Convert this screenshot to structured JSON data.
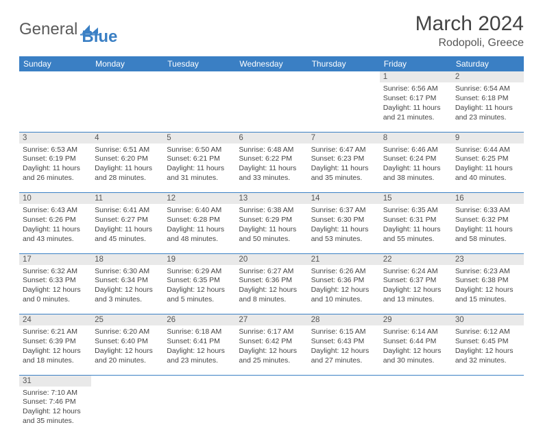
{
  "brand": {
    "general": "General",
    "blue": "Blue"
  },
  "title": "March 2024",
  "location": "Rodopoli, Greece",
  "colors": {
    "accent": "#3a7fc4",
    "daynum_bg": "#e9e9e9",
    "text": "#444444"
  },
  "weekdays": [
    "Sunday",
    "Monday",
    "Tuesday",
    "Wednesday",
    "Thursday",
    "Friday",
    "Saturday"
  ],
  "rows": [
    {
      "nums": [
        "",
        "",
        "",
        "",
        "",
        "1",
        "2"
      ],
      "cells": [
        null,
        null,
        null,
        null,
        null,
        {
          "sunrise": "Sunrise: 6:56 AM",
          "sunset": "Sunset: 6:17 PM",
          "day1": "Daylight: 11 hours",
          "day2": "and 21 minutes."
        },
        {
          "sunrise": "Sunrise: 6:54 AM",
          "sunset": "Sunset: 6:18 PM",
          "day1": "Daylight: 11 hours",
          "day2": "and 23 minutes."
        }
      ]
    },
    {
      "nums": [
        "3",
        "4",
        "5",
        "6",
        "7",
        "8",
        "9"
      ],
      "cells": [
        {
          "sunrise": "Sunrise: 6:53 AM",
          "sunset": "Sunset: 6:19 PM",
          "day1": "Daylight: 11 hours",
          "day2": "and 26 minutes."
        },
        {
          "sunrise": "Sunrise: 6:51 AM",
          "sunset": "Sunset: 6:20 PM",
          "day1": "Daylight: 11 hours",
          "day2": "and 28 minutes."
        },
        {
          "sunrise": "Sunrise: 6:50 AM",
          "sunset": "Sunset: 6:21 PM",
          "day1": "Daylight: 11 hours",
          "day2": "and 31 minutes."
        },
        {
          "sunrise": "Sunrise: 6:48 AM",
          "sunset": "Sunset: 6:22 PM",
          "day1": "Daylight: 11 hours",
          "day2": "and 33 minutes."
        },
        {
          "sunrise": "Sunrise: 6:47 AM",
          "sunset": "Sunset: 6:23 PM",
          "day1": "Daylight: 11 hours",
          "day2": "and 35 minutes."
        },
        {
          "sunrise": "Sunrise: 6:46 AM",
          "sunset": "Sunset: 6:24 PM",
          "day1": "Daylight: 11 hours",
          "day2": "and 38 minutes."
        },
        {
          "sunrise": "Sunrise: 6:44 AM",
          "sunset": "Sunset: 6:25 PM",
          "day1": "Daylight: 11 hours",
          "day2": "and 40 minutes."
        }
      ]
    },
    {
      "nums": [
        "10",
        "11",
        "12",
        "13",
        "14",
        "15",
        "16"
      ],
      "cells": [
        {
          "sunrise": "Sunrise: 6:43 AM",
          "sunset": "Sunset: 6:26 PM",
          "day1": "Daylight: 11 hours",
          "day2": "and 43 minutes."
        },
        {
          "sunrise": "Sunrise: 6:41 AM",
          "sunset": "Sunset: 6:27 PM",
          "day1": "Daylight: 11 hours",
          "day2": "and 45 minutes."
        },
        {
          "sunrise": "Sunrise: 6:40 AM",
          "sunset": "Sunset: 6:28 PM",
          "day1": "Daylight: 11 hours",
          "day2": "and 48 minutes."
        },
        {
          "sunrise": "Sunrise: 6:38 AM",
          "sunset": "Sunset: 6:29 PM",
          "day1": "Daylight: 11 hours",
          "day2": "and 50 minutes."
        },
        {
          "sunrise": "Sunrise: 6:37 AM",
          "sunset": "Sunset: 6:30 PM",
          "day1": "Daylight: 11 hours",
          "day2": "and 53 minutes."
        },
        {
          "sunrise": "Sunrise: 6:35 AM",
          "sunset": "Sunset: 6:31 PM",
          "day1": "Daylight: 11 hours",
          "day2": "and 55 minutes."
        },
        {
          "sunrise": "Sunrise: 6:33 AM",
          "sunset": "Sunset: 6:32 PM",
          "day1": "Daylight: 11 hours",
          "day2": "and 58 minutes."
        }
      ]
    },
    {
      "nums": [
        "17",
        "18",
        "19",
        "20",
        "21",
        "22",
        "23"
      ],
      "cells": [
        {
          "sunrise": "Sunrise: 6:32 AM",
          "sunset": "Sunset: 6:33 PM",
          "day1": "Daylight: 12 hours",
          "day2": "and 0 minutes."
        },
        {
          "sunrise": "Sunrise: 6:30 AM",
          "sunset": "Sunset: 6:34 PM",
          "day1": "Daylight: 12 hours",
          "day2": "and 3 minutes."
        },
        {
          "sunrise": "Sunrise: 6:29 AM",
          "sunset": "Sunset: 6:35 PM",
          "day1": "Daylight: 12 hours",
          "day2": "and 5 minutes."
        },
        {
          "sunrise": "Sunrise: 6:27 AM",
          "sunset": "Sunset: 6:36 PM",
          "day1": "Daylight: 12 hours",
          "day2": "and 8 minutes."
        },
        {
          "sunrise": "Sunrise: 6:26 AM",
          "sunset": "Sunset: 6:36 PM",
          "day1": "Daylight: 12 hours",
          "day2": "and 10 minutes."
        },
        {
          "sunrise": "Sunrise: 6:24 AM",
          "sunset": "Sunset: 6:37 PM",
          "day1": "Daylight: 12 hours",
          "day2": "and 13 minutes."
        },
        {
          "sunrise": "Sunrise: 6:23 AM",
          "sunset": "Sunset: 6:38 PM",
          "day1": "Daylight: 12 hours",
          "day2": "and 15 minutes."
        }
      ]
    },
    {
      "nums": [
        "24",
        "25",
        "26",
        "27",
        "28",
        "29",
        "30"
      ],
      "cells": [
        {
          "sunrise": "Sunrise: 6:21 AM",
          "sunset": "Sunset: 6:39 PM",
          "day1": "Daylight: 12 hours",
          "day2": "and 18 minutes."
        },
        {
          "sunrise": "Sunrise: 6:20 AM",
          "sunset": "Sunset: 6:40 PM",
          "day1": "Daylight: 12 hours",
          "day2": "and 20 minutes."
        },
        {
          "sunrise": "Sunrise: 6:18 AM",
          "sunset": "Sunset: 6:41 PM",
          "day1": "Daylight: 12 hours",
          "day2": "and 23 minutes."
        },
        {
          "sunrise": "Sunrise: 6:17 AM",
          "sunset": "Sunset: 6:42 PM",
          "day1": "Daylight: 12 hours",
          "day2": "and 25 minutes."
        },
        {
          "sunrise": "Sunrise: 6:15 AM",
          "sunset": "Sunset: 6:43 PM",
          "day1": "Daylight: 12 hours",
          "day2": "and 27 minutes."
        },
        {
          "sunrise": "Sunrise: 6:14 AM",
          "sunset": "Sunset: 6:44 PM",
          "day1": "Daylight: 12 hours",
          "day2": "and 30 minutes."
        },
        {
          "sunrise": "Sunrise: 6:12 AM",
          "sunset": "Sunset: 6:45 PM",
          "day1": "Daylight: 12 hours",
          "day2": "and 32 minutes."
        }
      ]
    },
    {
      "nums": [
        "31",
        "",
        "",
        "",
        "",
        "",
        ""
      ],
      "cells": [
        {
          "sunrise": "Sunrise: 7:10 AM",
          "sunset": "Sunset: 7:46 PM",
          "day1": "Daylight: 12 hours",
          "day2": "and 35 minutes."
        },
        null,
        null,
        null,
        null,
        null,
        null
      ]
    }
  ]
}
